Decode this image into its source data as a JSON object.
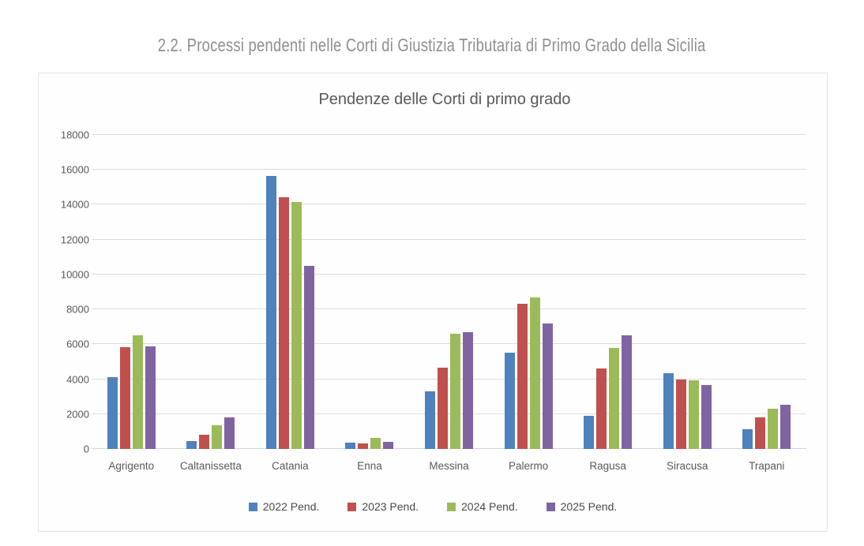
{
  "page": {
    "title": "2.2. Processi pendenti nelle Corti di Giustizia Tributaria di Primo Grado della Sicilia"
  },
  "chart_data": {
    "type": "bar",
    "title": "Pendenze delle Corti di primo grado",
    "categories": [
      "Agrigento",
      "Caltanissetta",
      "Catania",
      "Enna",
      "Messina",
      "Palermo",
      "Ragusa",
      "Siracusa",
      "Trapani"
    ],
    "series": [
      {
        "name": "2022 Pend.",
        "color": "#4F81BD",
        "values": [
          4100,
          450,
          15650,
          350,
          3300,
          5500,
          1900,
          4350,
          1150
        ]
      },
      {
        "name": "2023 Pend.",
        "color": "#C0504D",
        "values": [
          5850,
          800,
          14450,
          330,
          4650,
          8300,
          4600,
          4000,
          1800
        ]
      },
      {
        "name": "2024 Pend.",
        "color": "#9BBB59",
        "values": [
          6500,
          1350,
          14150,
          650,
          6600,
          8700,
          5800,
          3950,
          2300
        ]
      },
      {
        "name": "2025 Pend.",
        "color": "#8064A2",
        "values": [
          5900,
          1800,
          10500,
          420,
          6700,
          7200,
          6500,
          3650,
          2550
        ]
      }
    ],
    "ylim": [
      0,
      18000
    ],
    "y_ticks": [
      0,
      2000,
      4000,
      6000,
      8000,
      10000,
      12000,
      14000,
      16000,
      18000
    ],
    "grid": true,
    "legend_position": "bottom",
    "colors": {
      "grid": "#dcdcdc",
      "text": "#595959",
      "doc_title_text": "#8f8f8f",
      "card_border": "#e5e5e5"
    }
  }
}
